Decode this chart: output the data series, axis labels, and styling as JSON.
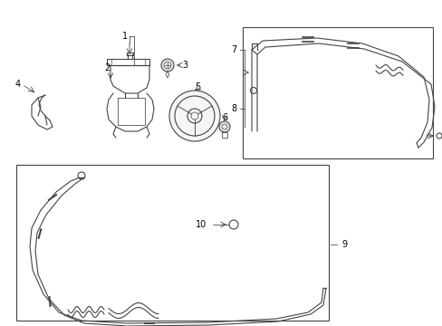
{
  "bg_color": "#ffffff",
  "line_color": "#444444",
  "label_color": "#000000",
  "figsize": [
    4.89,
    3.6
  ],
  "dpi": 100
}
